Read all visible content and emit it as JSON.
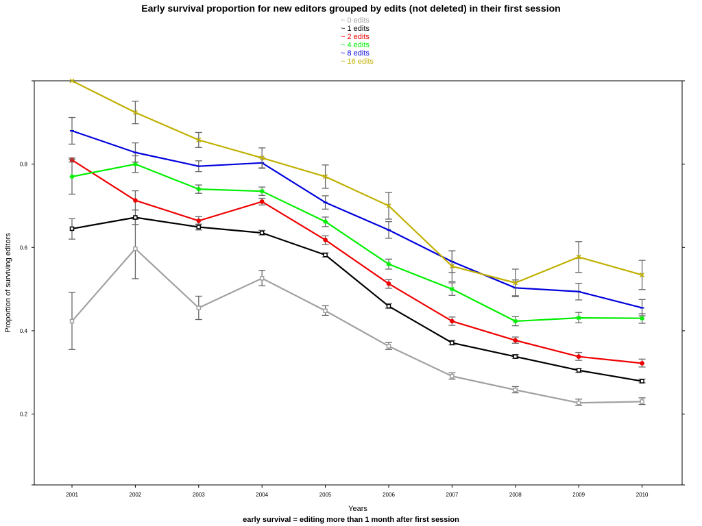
{
  "chart_data": {
    "type": "line",
    "title": "Early survival proportion for new editors grouped by edits (not deleted) in their first session",
    "xlabel": "Years",
    "ylabel": "Proportion of surviving editors",
    "caption": "early survival = editing more than 1 month after first session",
    "x": [
      "2001",
      "2002",
      "2003",
      "2004",
      "2005",
      "2006",
      "2007",
      "2008",
      "2009",
      "2010"
    ],
    "xlim": [
      2000.5,
      2010.7
    ],
    "ylim": [
      0.03,
      1.0
    ],
    "y_ticks": [
      0.2,
      0.4,
      0.6,
      0.8
    ],
    "y_tick_labels": [
      "0.2",
      "0.4",
      "0.6",
      "0.8"
    ],
    "grid": false,
    "legend_position": "top-center",
    "series": [
      {
        "name": "~ 0 edits",
        "color": "#a0a0a0",
        "marker": "square",
        "values": [
          0.423,
          0.597,
          0.455,
          0.526,
          0.448,
          0.363,
          0.291,
          0.258,
          0.227,
          0.23
        ],
        "err_low": [
          0.355,
          0.525,
          0.427,
          0.508,
          0.437,
          0.355,
          0.284,
          0.251,
          0.221,
          0.223
        ],
        "err_high": [
          0.492,
          0.668,
          0.483,
          0.545,
          0.46,
          0.372,
          0.299,
          0.266,
          0.236,
          0.239
        ]
      },
      {
        "name": "~ 1 edits",
        "color": "#000000",
        "marker": "square",
        "values": [
          0.645,
          0.672,
          0.649,
          0.635,
          0.582,
          0.459,
          0.371,
          0.338,
          0.305,
          0.279
        ],
        "err_low": [
          0.62,
          0.655,
          0.642,
          0.63,
          0.577,
          0.454,
          0.366,
          0.334,
          0.3,
          0.275
        ],
        "err_high": [
          0.669,
          0.69,
          0.656,
          0.641,
          0.587,
          0.465,
          0.377,
          0.343,
          0.309,
          0.284
        ]
      },
      {
        "name": "~ 2 edits",
        "color": "#ee0000",
        "marker": "circle",
        "values": [
          0.81,
          0.713,
          0.664,
          0.71,
          0.618,
          0.513,
          0.423,
          0.377,
          0.338,
          0.322
        ],
        "err_low": [
          0.805,
          0.69,
          0.655,
          0.702,
          0.607,
          0.502,
          0.413,
          0.37,
          0.329,
          0.313
        ],
        "err_high": [
          0.815,
          0.736,
          0.674,
          0.718,
          0.628,
          0.523,
          0.433,
          0.385,
          0.348,
          0.332
        ]
      },
      {
        "name": "~ 4 edits",
        "color": "#00ee00",
        "marker": "star",
        "values": [
          0.77,
          0.8,
          0.74,
          0.735,
          0.662,
          0.56,
          0.5,
          0.423,
          0.431,
          0.43
        ],
        "err_low": [
          0.728,
          0.78,
          0.73,
          0.725,
          0.65,
          0.548,
          0.485,
          0.412,
          0.419,
          0.418
        ],
        "err_high": [
          0.812,
          0.82,
          0.75,
          0.745,
          0.673,
          0.572,
          0.515,
          0.434,
          0.444,
          0.441
        ]
      },
      {
        "name": "~ 8 edits",
        "color": "#0000dd",
        "marker": "dash",
        "values": [
          0.88,
          0.828,
          0.795,
          0.803,
          0.708,
          0.642,
          0.566,
          0.503,
          0.494,
          0.455
        ],
        "err_low": [
          0.848,
          0.805,
          0.782,
          0.79,
          0.692,
          0.622,
          0.54,
          0.484,
          0.474,
          0.436
        ],
        "err_high": [
          0.912,
          0.851,
          0.808,
          0.815,
          0.724,
          0.662,
          0.592,
          0.522,
          0.514,
          0.475
        ]
      },
      {
        "name": "~ 16 edits",
        "color": "#c0b000",
        "marker": "cross",
        "values": [
          1.0,
          0.924,
          0.858,
          0.815,
          0.77,
          0.7,
          0.555,
          0.515,
          0.577,
          0.534
        ],
        "err_low": [
          1.0,
          0.897,
          0.84,
          0.791,
          0.742,
          0.668,
          0.518,
          0.482,
          0.54,
          0.499
        ],
        "err_high": [
          1.0,
          0.951,
          0.876,
          0.839,
          0.798,
          0.732,
          0.592,
          0.548,
          0.614,
          0.569
        ]
      }
    ]
  }
}
